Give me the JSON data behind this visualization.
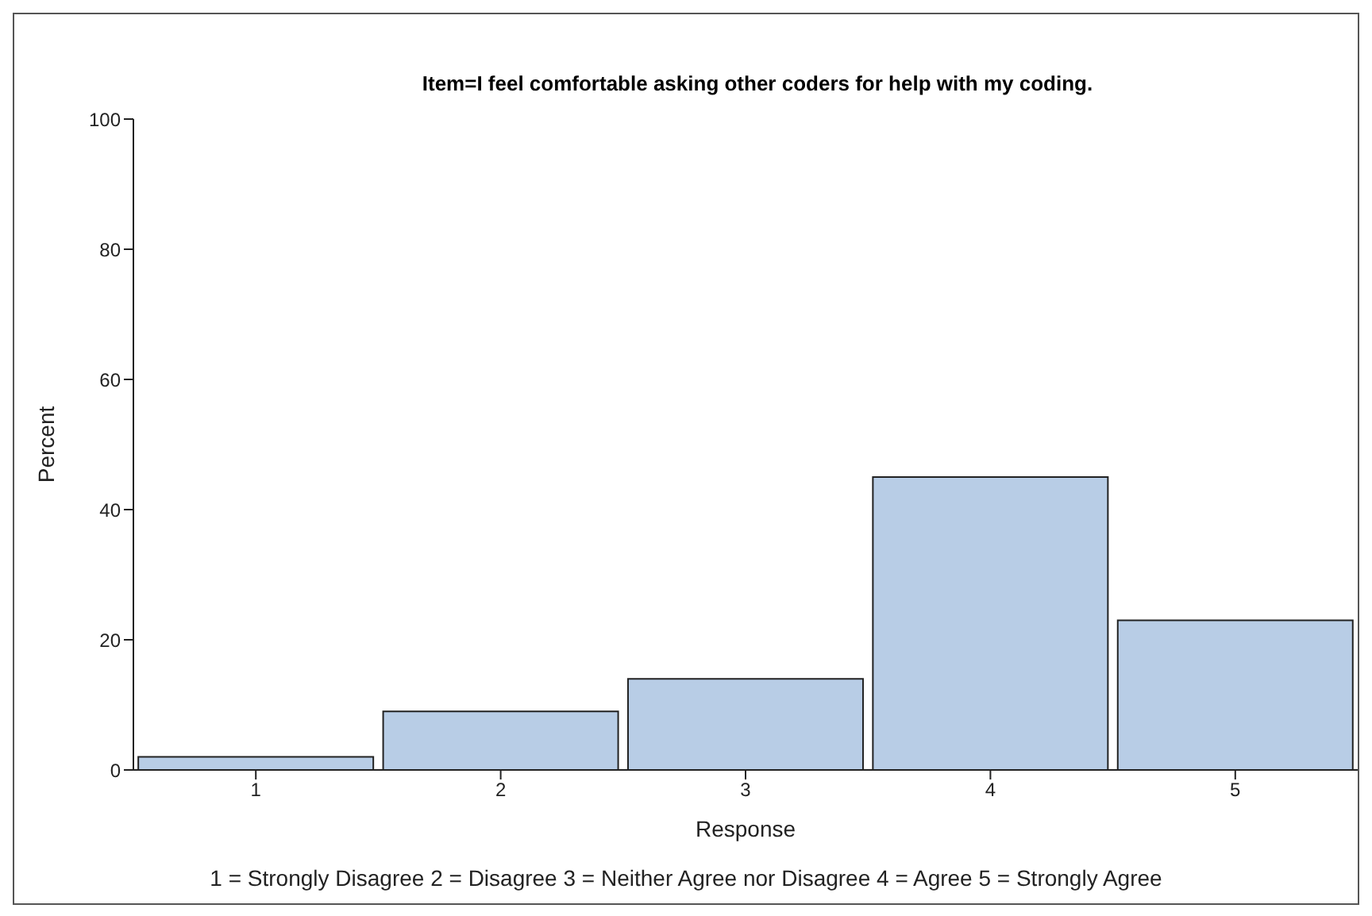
{
  "chart_data": {
    "type": "bar",
    "title": "Item=I feel comfortable asking other coders for help with my coding.",
    "categories": [
      "1",
      "2",
      "3",
      "4",
      "5"
    ],
    "values": [
      2,
      9,
      14,
      45,
      23
    ],
    "color": "#b8cde6",
    "xlabel": "Response",
    "ylabel": "Percent",
    "ylim": [
      0,
      100
    ],
    "yticks": [
      0,
      20,
      40,
      60,
      80,
      100
    ],
    "grid": false,
    "legend": false,
    "annotations": [
      "1 = Strongly Disagree 2 = Disagree 3 = Neither Agree nor Disagree 4 = Agree 5 = Strongly Agree"
    ]
  }
}
